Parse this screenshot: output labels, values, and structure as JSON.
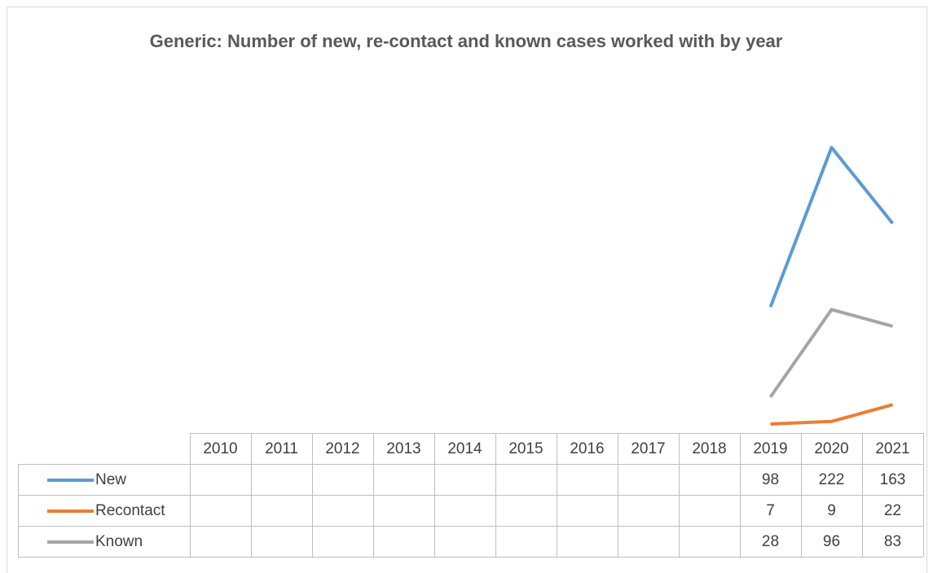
{
  "chart_data": {
    "type": "line",
    "title": "Generic: Number of new, re-contact and known cases worked with by year",
    "categories": [
      "2010",
      "2011",
      "2012",
      "2013",
      "2014",
      "2015",
      "2016",
      "2017",
      "2018",
      "2019",
      "2020",
      "2021"
    ],
    "series": [
      {
        "name": "New",
        "color": "#5b9bd5",
        "values": [
          null,
          null,
          null,
          null,
          null,
          null,
          null,
          null,
          null,
          98,
          222,
          163
        ]
      },
      {
        "name": "Recontact",
        "color": "#ed7d31",
        "values": [
          null,
          null,
          null,
          null,
          null,
          null,
          null,
          null,
          null,
          7,
          9,
          22
        ]
      },
      {
        "name": "Known",
        "color": "#a5a5a5",
        "values": [
          null,
          null,
          null,
          null,
          null,
          null,
          null,
          null,
          null,
          28,
          96,
          83
        ]
      }
    ],
    "ylim": [
      0,
      250
    ]
  }
}
